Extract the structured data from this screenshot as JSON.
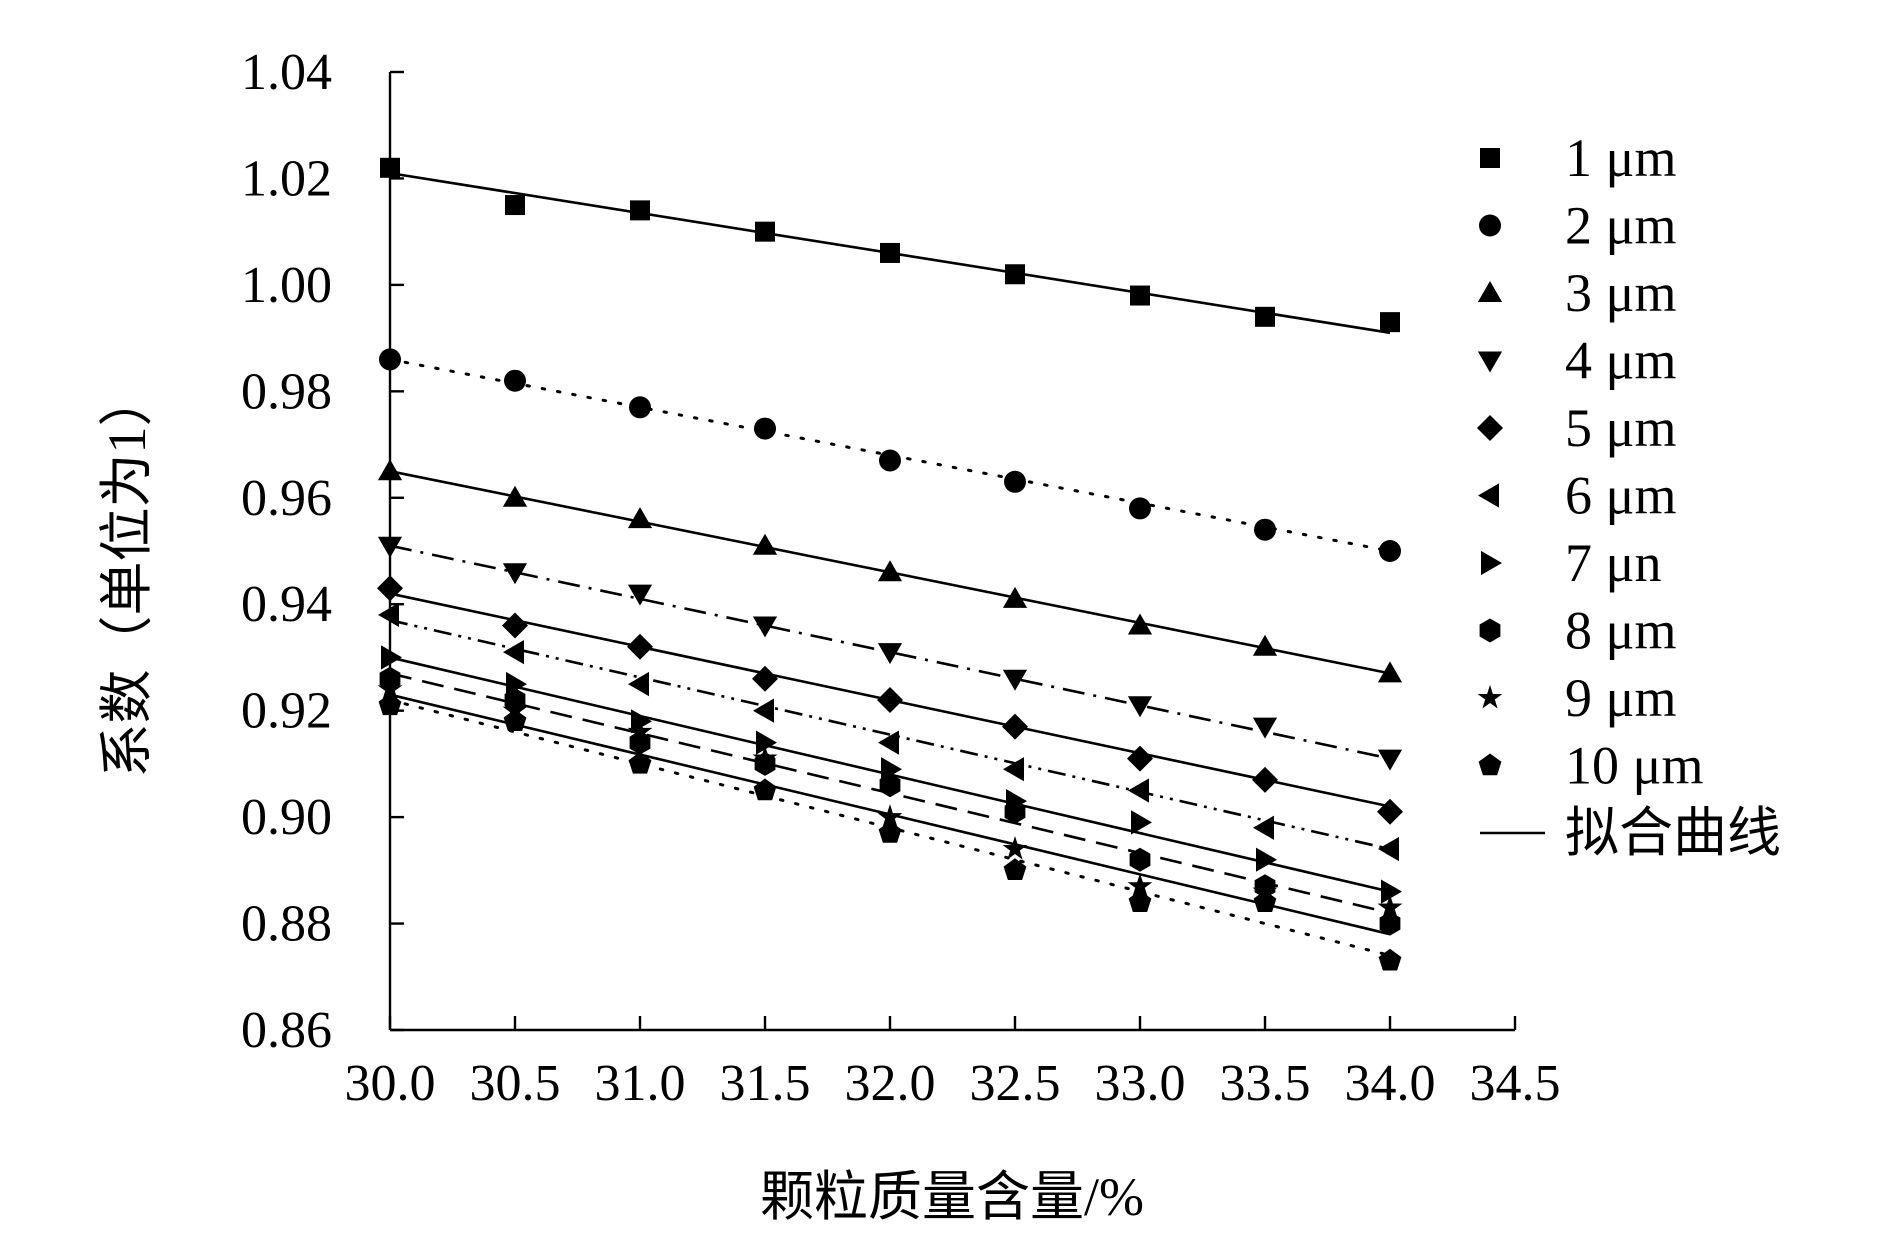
{
  "chart_data": {
    "type": "scatter",
    "title": "",
    "xlabel": "颗粒质量含量/%",
    "ylabel": "系数（单位为1）",
    "xlim": [
      30.0,
      34.5
    ],
    "ylim": [
      0.86,
      1.04
    ],
    "xticks": [
      "30.0",
      "30.5",
      "31.0",
      "31.5",
      "32.0",
      "32.5",
      "33.0",
      "33.5",
      "34.0",
      "34.5"
    ],
    "yticks": [
      "0.86",
      "0.88",
      "0.90",
      "0.92",
      "0.94",
      "0.96",
      "0.98",
      "1.00",
      "1.02",
      "1.04"
    ],
    "grid": false,
    "legend_position": "right",
    "x": [
      30.0,
      30.5,
      31.0,
      31.5,
      32.0,
      32.5,
      33.0,
      33.5,
      34.0
    ],
    "series": [
      {
        "name": "1 μm",
        "marker": "square",
        "line": "solid",
        "values": [
          1.022,
          1.015,
          1.014,
          1.01,
          1.006,
          1.002,
          0.998,
          0.994,
          0.993
        ],
        "fit": [
          1.021,
          0.991
        ]
      },
      {
        "name": "2 μm",
        "marker": "circle",
        "line": "dotted",
        "values": [
          0.986,
          0.982,
          0.977,
          0.973,
          0.967,
          0.963,
          0.958,
          0.954,
          0.95
        ],
        "fit": [
          0.986,
          0.95
        ]
      },
      {
        "name": "3 μm",
        "marker": "triangle-up",
        "line": "solid",
        "values": [
          0.965,
          0.96,
          0.956,
          0.951,
          0.946,
          0.941,
          0.936,
          0.932,
          0.927
        ],
        "fit": [
          0.965,
          0.927
        ]
      },
      {
        "name": "4 μm",
        "marker": "triangle-down",
        "line": "dashdot",
        "values": [
          0.951,
          0.946,
          0.942,
          0.936,
          0.931,
          0.926,
          0.921,
          0.917,
          0.911
        ],
        "fit": [
          0.951,
          0.911
        ]
      },
      {
        "name": "5 μm",
        "marker": "diamond",
        "line": "solid",
        "values": [
          0.943,
          0.936,
          0.932,
          0.926,
          0.922,
          0.917,
          0.911,
          0.907,
          0.901
        ],
        "fit": [
          0.942,
          0.902
        ]
      },
      {
        "name": "6 μm",
        "marker": "triangle-left",
        "line": "dashdotdot",
        "values": [
          0.938,
          0.931,
          0.925,
          0.92,
          0.914,
          0.909,
          0.905,
          0.898,
          0.894
        ],
        "fit": [
          0.937,
          0.894
        ]
      },
      {
        "name": "7 μn",
        "marker": "triangle-right",
        "line": "solid",
        "values": [
          0.93,
          0.925,
          0.918,
          0.914,
          0.909,
          0.903,
          0.899,
          0.892,
          0.886
        ],
        "fit": [
          0.93,
          0.886
        ]
      },
      {
        "name": "8 μm",
        "marker": "hexagon",
        "line": "dashed",
        "values": [
          0.926,
          0.922,
          0.914,
          0.91,
          0.906,
          0.901,
          0.892,
          0.887,
          0.88
        ],
        "fit": [
          0.927,
          0.882
        ]
      },
      {
        "name": "9 μm",
        "marker": "star",
        "line": "solid",
        "values": [
          0.924,
          0.92,
          0.916,
          0.911,
          0.9,
          0.894,
          0.887,
          0.886,
          0.883
        ],
        "fit": [
          0.923,
          0.878
        ]
      },
      {
        "name": "10 μm",
        "marker": "pentagon",
        "line": "dotted",
        "values": [
          0.921,
          0.918,
          0.91,
          0.905,
          0.897,
          0.89,
          0.884,
          0.884,
          0.873
        ],
        "fit": [
          0.922,
          0.874
        ]
      }
    ],
    "fit_legend": "拟合曲线"
  }
}
